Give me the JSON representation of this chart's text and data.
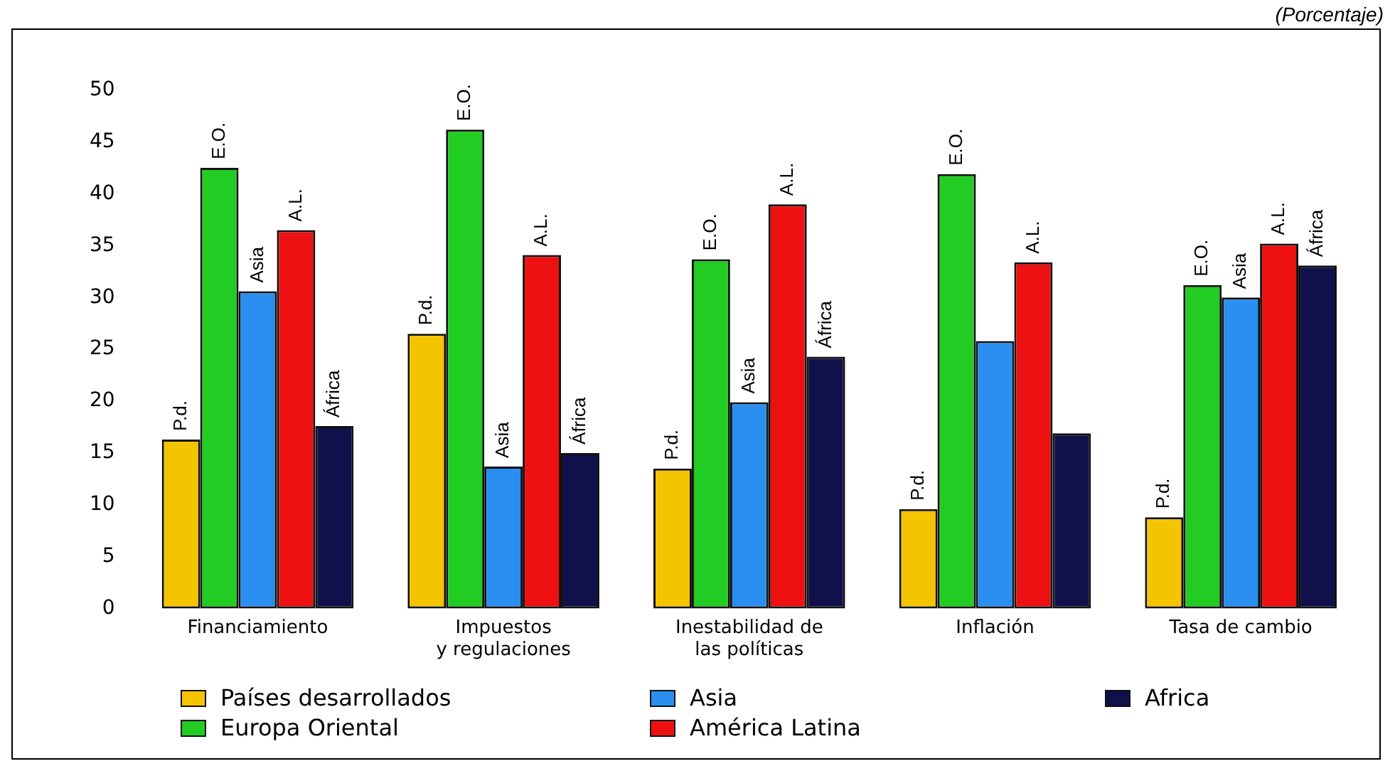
{
  "chart_data": {
    "type": "bar",
    "annotations": [
      "(Porcentaje)"
    ],
    "categories": [
      "Financiamiento",
      "Impuestos y regulaciones",
      "Inestabilidad de las políticas",
      "Inflación",
      "Tasa de cambio"
    ],
    "series": [
      {
        "name": "Países desarrollados",
        "color": "#f5c400",
        "values": [
          16.3,
          26.5,
          13.5,
          9.6,
          8.8
        ],
        "value_labels": [
          "P.d.",
          "P.d.",
          "P.d.",
          "P.d.",
          "P.d."
        ]
      },
      {
        "name": "Europa Oriental",
        "color": "#22cc22",
        "values": [
          42.5,
          46.2,
          33.7,
          41.9,
          31.2
        ],
        "value_labels": [
          "E.O.",
          "E.O.",
          "E.O.",
          "E.O.",
          "E.O."
        ]
      },
      {
        "name": "Asia",
        "color": "#2a8ff0",
        "values": [
          30.6,
          13.7,
          19.9,
          25.8,
          30.0
        ],
        "value_labels": [
          "Asia",
          "Asia",
          "Asia",
          null,
          "Asia"
        ]
      },
      {
        "name": "América Latina",
        "color": "#ee1111",
        "values": [
          36.5,
          34.1,
          39.0,
          33.4,
          35.2
        ],
        "value_labels": [
          "A.L.",
          "A.L.",
          "A.L.",
          "A.L.",
          "A.L."
        ]
      },
      {
        "name": "Africa",
        "color": "#10104a",
        "values": [
          17.6,
          15.0,
          24.3,
          16.9,
          33.1
        ],
        "value_labels": [
          "África",
          "África",
          "África",
          null,
          "África"
        ]
      }
    ],
    "ylim": [
      0,
      50
    ],
    "yticks": [
      0,
      5,
      10,
      15,
      20,
      25,
      30,
      35,
      40,
      45,
      50
    ],
    "grid": false,
    "legend": "bottom"
  }
}
